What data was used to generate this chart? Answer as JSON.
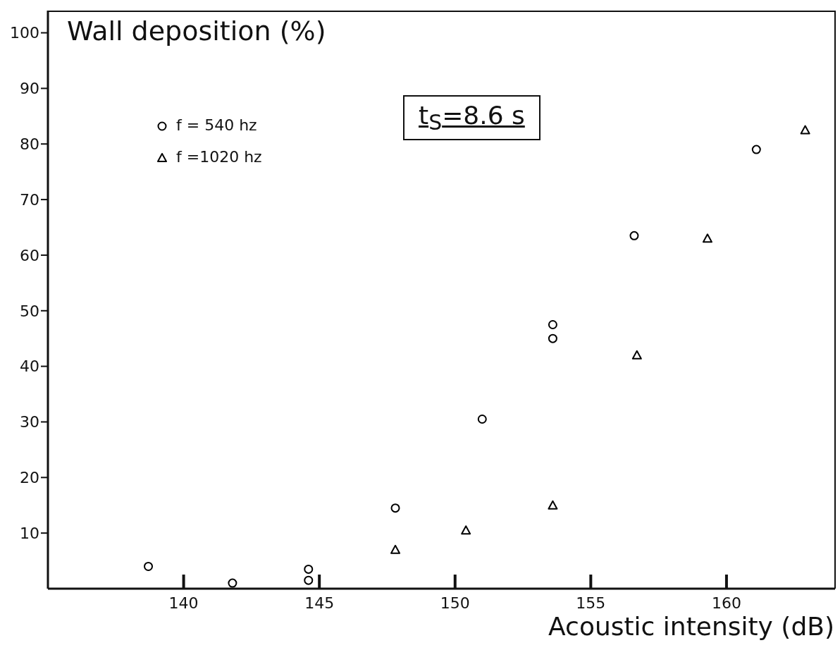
{
  "chart_data": {
    "type": "scatter",
    "xlabel": "Acoustic intensity (dB)",
    "ylabel": "Wall deposition (%)",
    "xlim": [
      135,
      164
    ],
    "xticks": [
      140,
      145,
      150,
      155,
      160
    ],
    "ylim": [
      0,
      104
    ],
    "yticks": [
      10,
      20,
      30,
      40,
      50,
      60,
      70,
      80,
      90,
      100
    ],
    "grid": false,
    "legend": "top left",
    "annotations": [
      "t$_{S}$=8.6 s"
    ],
    "series": [
      {
        "name": "f = 540 hz",
        "color": "#000000",
        "marker": "circle",
        "x": [
          138.7,
          141.8,
          144.6,
          144.6,
          147.8,
          151.0,
          153.6,
          153.6,
          156.6,
          161.1
        ],
        "values": [
          4,
          1,
          3.5,
          1.5,
          14.5,
          30.5,
          47.5,
          45,
          63.5,
          79
        ]
      },
      {
        "name": "f =1020 hz",
        "color": "#000000",
        "marker": "triangle",
        "x": [
          147.8,
          150.4,
          153.6,
          156.7,
          159.3,
          162.9
        ],
        "values": [
          7,
          10.5,
          15,
          42,
          63,
          82.5
        ]
      }
    ]
  }
}
